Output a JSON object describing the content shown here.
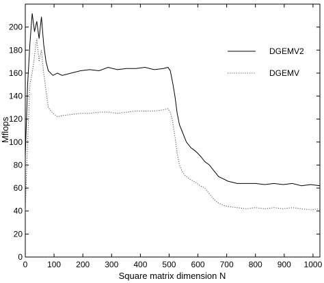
{
  "chart_data": {
    "type": "line",
    "xlabel": "Square matrix dimension N",
    "ylabel": "Mflops",
    "xlim": [
      0,
      1024
    ],
    "ylim": [
      0,
      220
    ],
    "x_ticks": [
      0,
      100,
      200,
      300,
      400,
      500,
      600,
      700,
      800,
      900,
      1000
    ],
    "y_ticks": [
      0,
      20,
      40,
      60,
      80,
      100,
      120,
      140,
      160,
      180,
      200
    ],
    "grid": false,
    "legend_position": "top-right",
    "series": [
      {
        "name": "DGEMV2",
        "line_style": "solid",
        "color": "#000000",
        "x": [
          0,
          8,
          16,
          24,
          32,
          40,
          48,
          56,
          64,
          72,
          80,
          96,
          112,
          128,
          160,
          192,
          224,
          256,
          288,
          320,
          352,
          384,
          416,
          448,
          480,
          496,
          504,
          512,
          520,
          528,
          536,
          544,
          552,
          560,
          576,
          592,
          608,
          624,
          640,
          656,
          672,
          688,
          704,
          736,
          768,
          800,
          832,
          864,
          896,
          928,
          960,
          992,
          1024
        ],
        "y": [
          88,
          150,
          185,
          212,
          196,
          205,
          190,
          209,
          185,
          170,
          162,
          158,
          160,
          158,
          160,
          162,
          163,
          162,
          165,
          163,
          164,
          164,
          165,
          163,
          164,
          165,
          162,
          152,
          140,
          125,
          115,
          110,
          105,
          100,
          95,
          92,
          88,
          83,
          80,
          75,
          70,
          68,
          66,
          64,
          64,
          64,
          63,
          64,
          63,
          64,
          62,
          63,
          62
        ]
      },
      {
        "name": "DGEMV",
        "line_style": "dotted",
        "color": "#555555",
        "x": [
          0,
          8,
          16,
          24,
          32,
          40,
          48,
          56,
          64,
          72,
          80,
          96,
          112,
          128,
          160,
          192,
          224,
          256,
          288,
          320,
          352,
          384,
          416,
          448,
          480,
          496,
          504,
          512,
          520,
          528,
          536,
          544,
          552,
          560,
          576,
          592,
          608,
          624,
          640,
          656,
          672,
          688,
          704,
          736,
          768,
          800,
          832,
          864,
          896,
          928,
          960,
          992,
          1024
        ],
        "y": [
          40,
          100,
          150,
          160,
          175,
          190,
          170,
          180,
          160,
          145,
          130,
          125,
          122,
          123,
          124,
          125,
          125,
          126,
          126,
          125,
          126,
          127,
          127,
          127,
          128,
          129,
          126,
          118,
          105,
          90,
          80,
          75,
          72,
          70,
          67,
          65,
          62,
          60,
          55,
          50,
          47,
          45,
          44,
          43,
          42,
          43,
          42,
          43,
          42,
          43,
          42,
          41,
          42
        ]
      }
    ]
  }
}
